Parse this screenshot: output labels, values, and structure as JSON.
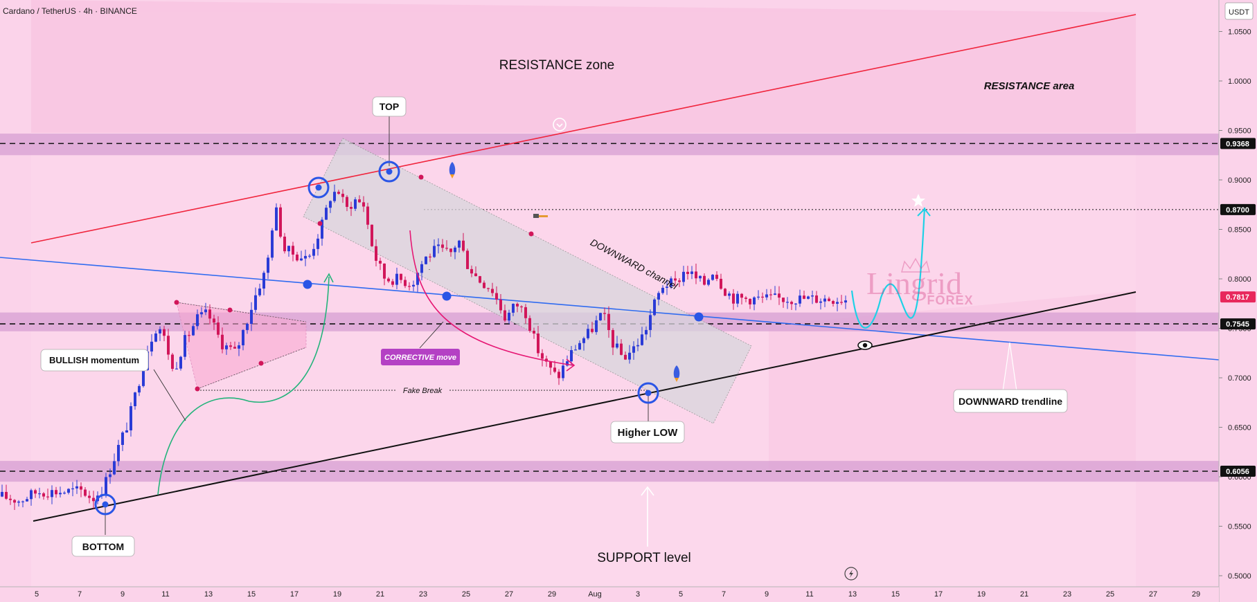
{
  "header": {
    "symbol_label": "Cardano / TetherUS · 4h · BINANCE",
    "currency": "USDT"
  },
  "colors": {
    "bull": "#2a3bd6",
    "bear": "#d1165a",
    "bg": "#fbd3ea",
    "resistance_line": "#f0243c",
    "trend_blue": "#2f6bf0",
    "support_line": "#111111",
    "cyan": "#1ed1e6",
    "green": "#23b37a"
  },
  "watermark": {
    "line1": "Lingrid",
    "line2": "FOREX"
  },
  "chart_data": {
    "type": "candlestick",
    "symbol": "Cardano / TetherUS",
    "timeframe": "4h",
    "exchange": "BINANCE",
    "ylim": [
      0.5,
      1.08
    ],
    "y_ticks": [
      "1.0500",
      "1.0000",
      "0.9500",
      "0.9000",
      "0.8500",
      "0.8000",
      "0.7500",
      "0.7000",
      "0.6500",
      "0.6000",
      "0.5500",
      "0.5000"
    ],
    "x_ticks": [
      "5",
      "7",
      "9",
      "11",
      "13",
      "15",
      "17",
      "19",
      "21",
      "23",
      "25",
      "27",
      "29",
      "Aug",
      "3",
      "5",
      "7",
      "9",
      "11",
      "13",
      "15",
      "17",
      "19",
      "21",
      "23",
      "25",
      "27",
      "29"
    ],
    "price_tags": [
      {
        "value": "0.9368",
        "style": "dark"
      },
      {
        "value": "0.8700",
        "style": "dark"
      },
      {
        "value": "0.7817",
        "style": "red"
      },
      {
        "value": "0.7545",
        "style": "dark"
      },
      {
        "value": "0.6056",
        "style": "dark"
      }
    ],
    "anchors": [
      {
        "x": 3,
        "y": 0.58
      },
      {
        "x": 28,
        "y": 0.576
      },
      {
        "x": 54,
        "y": 0.585
      },
      {
        "x": 86,
        "y": 0.585
      },
      {
        "x": 118,
        "y": 0.586
      },
      {
        "x": 134,
        "y": 0.578
      },
      {
        "x": 150,
        "y": 0.59
      },
      {
        "x": 168,
        "y": 0.625
      },
      {
        "x": 185,
        "y": 0.655
      },
      {
        "x": 200,
        "y": 0.695
      },
      {
        "x": 215,
        "y": 0.735
      },
      {
        "x": 228,
        "y": 0.755
      },
      {
        "x": 240,
        "y": 0.735
      },
      {
        "x": 250,
        "y": 0.705
      },
      {
        "x": 265,
        "y": 0.735
      },
      {
        "x": 285,
        "y": 0.76
      },
      {
        "x": 300,
        "y": 0.765
      },
      {
        "x": 320,
        "y": 0.735
      },
      {
        "x": 340,
        "y": 0.725
      },
      {
        "x": 355,
        "y": 0.755
      },
      {
        "x": 372,
        "y": 0.79
      },
      {
        "x": 385,
        "y": 0.81
      },
      {
        "x": 397,
        "y": 0.875
      },
      {
        "x": 410,
        "y": 0.83
      },
      {
        "x": 425,
        "y": 0.825
      },
      {
        "x": 445,
        "y": 0.82
      },
      {
        "x": 465,
        "y": 0.855
      },
      {
        "x": 478,
        "y": 0.885
      },
      {
        "x": 488,
        "y": 0.89
      },
      {
        "x": 500,
        "y": 0.87
      },
      {
        "x": 512,
        "y": 0.88
      },
      {
        "x": 525,
        "y": 0.875
      },
      {
        "x": 540,
        "y": 0.825
      },
      {
        "x": 556,
        "y": 0.8
      },
      {
        "x": 575,
        "y": 0.8
      },
      {
        "x": 595,
        "y": 0.795
      },
      {
        "x": 612,
        "y": 0.82
      },
      {
        "x": 630,
        "y": 0.83
      },
      {
        "x": 650,
        "y": 0.825
      },
      {
        "x": 662,
        "y": 0.84
      },
      {
        "x": 675,
        "y": 0.815
      },
      {
        "x": 690,
        "y": 0.8
      },
      {
        "x": 710,
        "y": 0.79
      },
      {
        "x": 730,
        "y": 0.76
      },
      {
        "x": 745,
        "y": 0.775
      },
      {
        "x": 760,
        "y": 0.765
      },
      {
        "x": 775,
        "y": 0.73
      },
      {
        "x": 792,
        "y": 0.71
      },
      {
        "x": 805,
        "y": 0.7
      },
      {
        "x": 820,
        "y": 0.72
      },
      {
        "x": 835,
        "y": 0.735
      },
      {
        "x": 850,
        "y": 0.745
      },
      {
        "x": 870,
        "y": 0.765
      },
      {
        "x": 885,
        "y": 0.735
      },
      {
        "x": 900,
        "y": 0.72
      },
      {
        "x": 915,
        "y": 0.73
      },
      {
        "x": 930,
        "y": 0.745
      },
      {
        "x": 945,
        "y": 0.775
      },
      {
        "x": 958,
        "y": 0.795
      },
      {
        "x": 975,
        "y": 0.795
      },
      {
        "x": 990,
        "y": 0.81
      },
      {
        "x": 1005,
        "y": 0.8
      },
      {
        "x": 1018,
        "y": 0.795
      },
      {
        "x": 1030,
        "y": 0.81
      },
      {
        "x": 1045,
        "y": 0.79
      },
      {
        "x": 1060,
        "y": 0.78
      }
    ],
    "zones": [
      {
        "y1": 0.9468,
        "y2": 0.925
      },
      {
        "y1": 0.766,
        "y2": 0.747
      },
      {
        "y1": 0.616,
        "y2": 0.595
      }
    ],
    "dashed_levels": [
      0.9368,
      0.87,
      0.7545,
      0.6056
    ],
    "annotations": [
      {
        "text": "RESISTANCE zone",
        "style": "plain",
        "size": 19
      },
      {
        "text": "RESISTANCE area",
        "style": "italic",
        "size": 15
      },
      {
        "text": "TOP",
        "style": "box"
      },
      {
        "text": "BULLISH momentum",
        "style": "box"
      },
      {
        "text": "CORRECTIVE move",
        "style": "purple"
      },
      {
        "text": "Fake Break",
        "style": "italic-small"
      },
      {
        "text": "DOWNWARD channel",
        "style": "rotated"
      },
      {
        "text": "Higher LOW",
        "style": "box"
      },
      {
        "text": "DOWNWARD trendline",
        "style": "box"
      },
      {
        "text": "BOTTOM",
        "style": "box"
      },
      {
        "text": "SUPPORT level",
        "style": "plain",
        "size": 19
      }
    ]
  }
}
